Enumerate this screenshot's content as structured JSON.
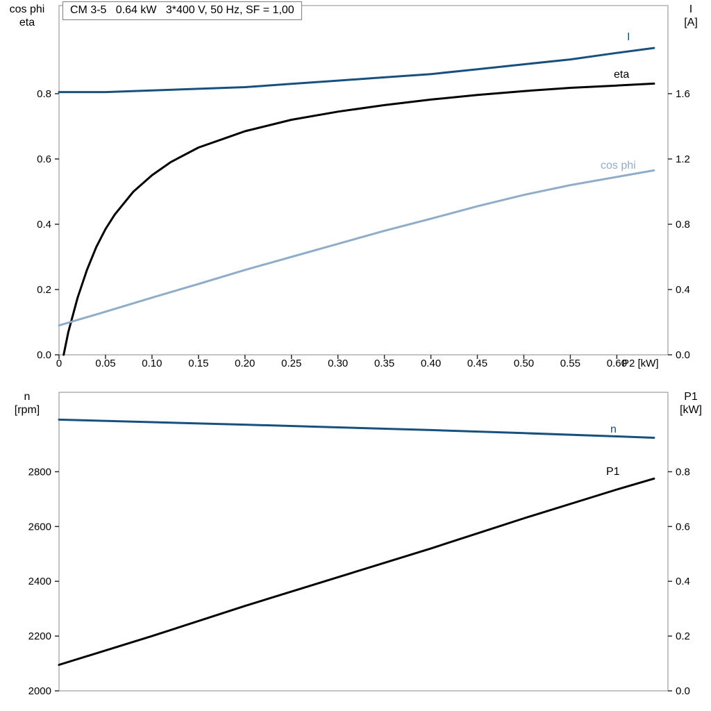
{
  "title_box": "CM 3-5   0.64 kW   3*400 V, 50 Hz, SF = 1,00",
  "colors": {
    "dark_blue": "#17507e",
    "light_blue": "#8fadc9",
    "black": "#000000",
    "frame": "#8a8a8a",
    "tick": "#2b2b2b"
  },
  "chart_data": [
    {
      "type": "line",
      "title": "CM 3-5   0.64 kW   3*400 V, 50 Hz, SF = 1,00",
      "x_axis": {
        "label": "P2 [kW]",
        "range": [
          0,
          0.655
        ],
        "tick_values": [
          0,
          0.05,
          0.1,
          0.15,
          0.2,
          0.25,
          0.3,
          0.35,
          0.4,
          0.45,
          0.5,
          0.55,
          0.6
        ],
        "tick_labels": [
          "0",
          "0.05",
          "0.10",
          "0.15",
          "0.20",
          "0.25",
          "0.30",
          "0.35",
          "0.40",
          "0.45",
          "0.50",
          "0.55",
          "0.60"
        ]
      },
      "left_axis": {
        "label_lines": [
          "cos phi",
          "eta"
        ],
        "range": [
          0,
          1.07
        ],
        "tick_values": [
          0,
          0.2,
          0.4,
          0.6,
          0.8
        ],
        "tick_labels": [
          "0.0",
          "0.2",
          "0.4",
          "0.6",
          "0.8"
        ]
      },
      "right_axis": {
        "label_lines": [
          "I",
          "[A]"
        ],
        "range": [
          0,
          2.14
        ],
        "tick_values": [
          0,
          0.4,
          0.8,
          1.2,
          1.6
        ],
        "tick_labels": [
          "0.0",
          "0.4",
          "0.8",
          "1.2",
          "1.6"
        ]
      },
      "series": [
        {
          "name": "I",
          "axis": "right",
          "color": "#17507e",
          "x": [
            0,
            0.05,
            0.1,
            0.15,
            0.2,
            0.25,
            0.3,
            0.35,
            0.4,
            0.45,
            0.5,
            0.55,
            0.6,
            0.64
          ],
          "y": [
            1.61,
            1.61,
            1.62,
            1.63,
            1.64,
            1.66,
            1.68,
            1.7,
            1.72,
            1.75,
            1.78,
            1.81,
            1.85,
            1.88
          ]
        },
        {
          "name": "eta",
          "axis": "left",
          "color": "#000000",
          "x": [
            0.005,
            0.01,
            0.02,
            0.03,
            0.04,
            0.05,
            0.06,
            0.08,
            0.1,
            0.12,
            0.15,
            0.18,
            0.2,
            0.25,
            0.3,
            0.35,
            0.4,
            0.45,
            0.5,
            0.55,
            0.6,
            0.64
          ],
          "y": [
            0,
            0.07,
            0.175,
            0.26,
            0.33,
            0.385,
            0.43,
            0.5,
            0.55,
            0.59,
            0.635,
            0.665,
            0.685,
            0.72,
            0.745,
            0.765,
            0.782,
            0.796,
            0.808,
            0.818,
            0.825,
            0.831
          ]
        },
        {
          "name": "cos phi",
          "axis": "left",
          "color": "#8fadc9",
          "x": [
            0,
            0.05,
            0.1,
            0.15,
            0.2,
            0.25,
            0.3,
            0.35,
            0.4,
            0.45,
            0.5,
            0.55,
            0.6,
            0.64
          ],
          "y": [
            0.09,
            0.132,
            0.175,
            0.217,
            0.26,
            0.3,
            0.34,
            0.38,
            0.417,
            0.455,
            0.49,
            0.52,
            0.545,
            0.565
          ]
        }
      ]
    },
    {
      "type": "line",
      "title": "",
      "x_axis": {
        "label": "",
        "range": [
          0,
          0.655
        ],
        "tick_values": [],
        "tick_labels": []
      },
      "left_axis": {
        "label_lines": [
          "n",
          "[rpm]"
        ],
        "range": [
          2000,
          3090
        ],
        "tick_values": [
          2000,
          2200,
          2400,
          2600,
          2800
        ],
        "tick_labels": [
          "2000",
          "2200",
          "2400",
          "2600",
          "2800"
        ]
      },
      "right_axis": {
        "label_lines": [
          "P1",
          "[kW]"
        ],
        "range": [
          0,
          1.09
        ],
        "tick_values": [
          0,
          0.2,
          0.4,
          0.6,
          0.8
        ],
        "tick_labels": [
          "0.0",
          "0.2",
          "0.4",
          "0.6",
          "0.8"
        ]
      },
      "series": [
        {
          "name": "n",
          "axis": "left",
          "color": "#17507e",
          "x": [
            0,
            0.1,
            0.2,
            0.3,
            0.4,
            0.5,
            0.6,
            0.64
          ],
          "y": [
            2990,
            2981,
            2972,
            2962,
            2952,
            2941,
            2929,
            2924
          ]
        },
        {
          "name": "P1",
          "axis": "right",
          "color": "#000000",
          "x": [
            0,
            0.1,
            0.2,
            0.3,
            0.4,
            0.5,
            0.6,
            0.64
          ],
          "y": [
            0.095,
            0.2,
            0.31,
            0.415,
            0.52,
            0.63,
            0.735,
            0.775
          ]
        }
      ]
    }
  ]
}
